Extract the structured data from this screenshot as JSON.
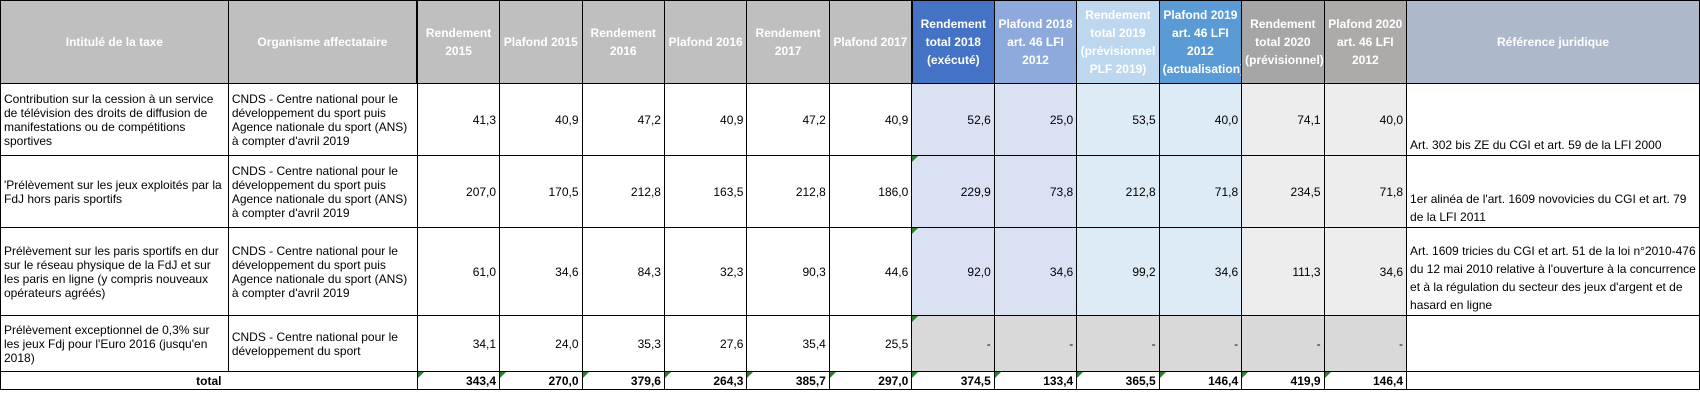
{
  "headers": {
    "taxe": "Intitulé de la taxe",
    "organisme": "Organisme affectataire",
    "r2015": "Rendement 2015",
    "p2015": "Plafond 2015",
    "r2016": "Rendement 2016",
    "p2016": "Plafond 2016",
    "r2017": "Rendement 2017",
    "p2017": "Plafond 2017",
    "r2018": "Rendement total 2018 (exécuté)",
    "p2018": "Plafond 2018 art. 46 LFI 2012",
    "r2019": "Rendement total 2019 (prévisionnel PLF 2019)",
    "p2019": "Plafond 2019 art. 46 LFI 2012 (actualisation)",
    "r2020": "Rendement total 2020 (prévisionnel)",
    "p2020": "Plafond 2020 art. 46 LFI 2012",
    "ref": "Référence juridique"
  },
  "rows": [
    {
      "taxe": "Contribution sur la cession à un service de télévision des droits de diffusion de manifestations ou de compétitions sportives",
      "organisme": "CNDS - Centre national pour le développement du sport puis Agence nationale du sport (ANS) à compter d'avril 2019",
      "r2015": "41,3",
      "p2015": "40,9",
      "r2016": "47,2",
      "p2016": "40,9",
      "r2017": "47,2",
      "p2017": "40,9",
      "r2018": "52,6",
      "p2018": "25,0",
      "r2019": "53,5",
      "p2019": "40,0",
      "r2020": "74,1",
      "p2020": "40,0",
      "ref": "Art. 302 bis ZE du CGI et art. 59 de la LFI 2000"
    },
    {
      "taxe": "'Prélèvement sur les jeux exploités par la FdJ hors paris sportifs",
      "organisme": "CNDS - Centre national pour le développement du sport puis Agence nationale du sport (ANS) à compter d'avril 2019",
      "r2015": "207,0",
      "p2015": "170,5",
      "r2016": "212,8",
      "p2016": "163,5",
      "r2017": "212,8",
      "p2017": "186,0",
      "r2018": "229,9",
      "p2018": "73,8",
      "r2019": "212,8",
      "p2019": "71,8",
      "r2020": "234,5",
      "p2020": "71,8",
      "ref": "1er alinéa de l'art. 1609 novovicies du CGI et art. 79 de la LFI 2011"
    },
    {
      "taxe": "Prélèvement sur les paris sportifs en dur sur le réseau physique de la FdJ et sur les paris en ligne (y compris nouveaux opérateurs agréés)",
      "organisme": "CNDS - Centre national pour le développement du sport puis Agence nationale du sport (ANS) à compter d'avril 2019",
      "r2015": "61,0",
      "p2015": "34,6",
      "r2016": "84,3",
      "p2016": "32,3",
      "r2017": "90,3",
      "p2017": "44,6",
      "r2018": "92,0",
      "p2018": "34,6",
      "r2019": "99,2",
      "p2019": "34,6",
      "r2020": "111,3",
      "p2020": "34,6",
      "ref": "Art. 1609 tricies du CGI et art. 51 de la loi n°2010-476 du 12 mai 2010 relative à l'ouverture à la concurrence et à la régulation du secteur des jeux d'argent et de hasard en ligne"
    },
    {
      "taxe": "Prélèvement exceptionnel de 0,3% sur les jeux Fdj pour l'Euro 2016 (jusqu'en 2018)",
      "organisme": "CNDS - Centre national pour le développement du sport",
      "r2015": "34,1",
      "p2015": "24,0",
      "r2016": "35,3",
      "p2016": "27,6",
      "r2017": "35,4",
      "p2017": "25,5",
      "r2018": "-",
      "p2018": "-",
      "r2019": "-",
      "p2019": "-",
      "r2020": "-",
      "p2020": "-",
      "ref": ""
    }
  ],
  "total": {
    "label": "total",
    "r2015": "343,4",
    "p2015": "270,0",
    "r2016": "379,6",
    "p2016": "264,3",
    "r2017": "385,7",
    "p2017": "297,0",
    "r2018": "374,5",
    "p2018": "133,4",
    "r2019": "365,5",
    "p2019": "146,4",
    "r2020": "419,9",
    "p2020": "146,4"
  }
}
